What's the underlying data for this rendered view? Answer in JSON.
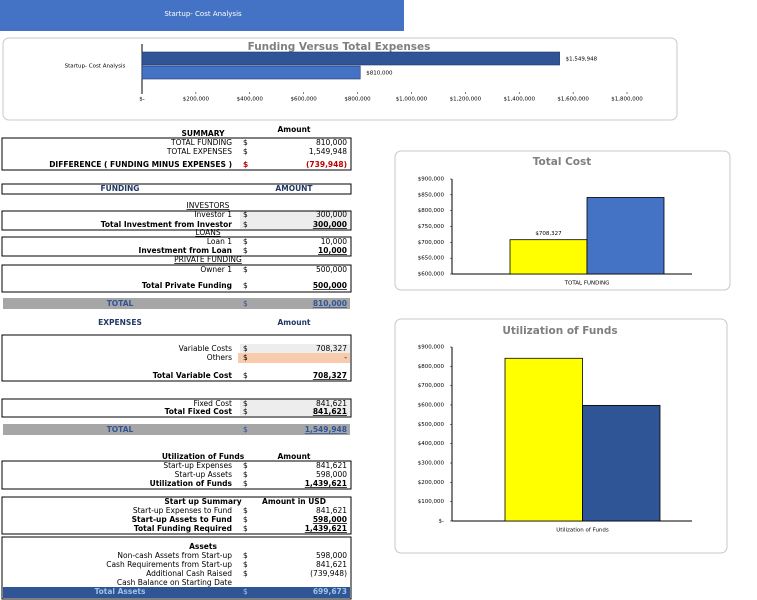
{
  "banner": {
    "title": "Startup- Cost Analysis"
  },
  "chart_data": [
    {
      "type": "bar",
      "orientation": "horizontal",
      "title": "Funding Versus Total Expenses",
      "categories": [
        "Startup- Cost Analysis"
      ],
      "series": [
        {
          "color": "#2f5597",
          "values": [
            1549948
          ],
          "value_labels": [
            "$1,549,948"
          ]
        },
        {
          "color": "#4472c4",
          "values": [
            810000
          ],
          "value_labels": [
            "$810,000"
          ]
        }
      ],
      "xlim": [
        0,
        1800000
      ],
      "xticks": [
        {
          "value": 0,
          "label": "$-"
        },
        {
          "value": 200000,
          "label": "$200,000"
        },
        {
          "value": 400000,
          "label": "$400,000"
        },
        {
          "value": 600000,
          "label": "$600,000"
        },
        {
          "value": 800000,
          "label": "$800,000"
        },
        {
          "value": 1000000,
          "label": "$1,000,000"
        },
        {
          "value": 1200000,
          "label": "$1,200,000"
        },
        {
          "value": 1400000,
          "label": "$1,400,000"
        },
        {
          "value": 1600000,
          "label": "$1,600,000"
        },
        {
          "value": 1800000,
          "label": "$1,800,000"
        }
      ]
    },
    {
      "type": "bar",
      "title": "Total Cost",
      "categories": [
        "TOTAL FUNDING"
      ],
      "series": [
        {
          "color": "#ffff00",
          "values": [
            708327
          ],
          "value_labels": [
            "$708,327"
          ]
        },
        {
          "color": "#4472c4",
          "values": [
            841621
          ]
        }
      ],
      "ylim": [
        600000,
        900000
      ],
      "yticks": [
        {
          "value": 600000,
          "label": "$600,000"
        },
        {
          "value": 650000,
          "label": "$650,000"
        },
        {
          "value": 700000,
          "label": "$700,000"
        },
        {
          "value": 750000,
          "label": "$750,000"
        },
        {
          "value": 800000,
          "label": "$800,000"
        },
        {
          "value": 850000,
          "label": "$850,000"
        },
        {
          "value": 900000,
          "label": "$900,000"
        }
      ]
    },
    {
      "type": "bar",
      "title": "Utilization of Funds",
      "categories": [
        "Utilization of Funds"
      ],
      "series": [
        {
          "color": "#ffff00",
          "values": [
            841621
          ]
        },
        {
          "color": "#2f5597",
          "values": [
            598000
          ]
        }
      ],
      "ylim": [
        0,
        900000
      ],
      "yticks": [
        {
          "value": 0,
          "label": "$-"
        },
        {
          "value": 100000,
          "label": "$100,000"
        },
        {
          "value": 200000,
          "label": "$200,000"
        },
        {
          "value": 300000,
          "label": "$300,000"
        },
        {
          "value": 400000,
          "label": "$400,000"
        },
        {
          "value": 500000,
          "label": "$500,000"
        },
        {
          "value": 600000,
          "label": "$600,000"
        },
        {
          "value": 700000,
          "label": "$700,000"
        },
        {
          "value": 800000,
          "label": "$800,000"
        },
        {
          "value": 900000,
          "label": "$900,000"
        }
      ]
    }
  ],
  "sheet": {
    "rows": [
      {
        "amount": "Amount"
      },
      {
        "label": "SUMMARY"
      },
      {
        "label": "TOTAL FUNDING",
        "cur": "$",
        "amount": "810,000"
      },
      {
        "label": "TOTAL EXPENSES",
        "cur": "$",
        "amount": "1,549,948"
      },
      {
        "label": "DIFFERENCE ( FUNDING MINUS EXPENSES )",
        "cur": "$",
        "amount": "(739,948)"
      },
      {
        "label": "FUNDING",
        "amount": "AMOUNT"
      },
      {
        "label": "INVESTORS"
      },
      {
        "label": "Investor 1",
        "cur": "$",
        "amount": "300,000"
      },
      {
        "label": "Total Investment from Investor",
        "cur": "$",
        "amount": "300,000"
      },
      {
        "label": "LOANS"
      },
      {
        "label": "Loan 1",
        "cur": "$",
        "amount": "10,000"
      },
      {
        "label": "Investment from Loan",
        "cur": "$",
        "amount": "10,000"
      },
      {
        "label": "PRIVATE FUNDING"
      },
      {
        "label": "Owner 1",
        "cur": "$",
        "amount": "500,000"
      },
      {
        "label": "Total Private Funding",
        "cur": "$",
        "amount": "500,000"
      },
      {
        "label": "TOTAL",
        "cur": "$",
        "amount": "810,000"
      },
      {
        "label": "EXPENSES",
        "amount": "Amount"
      },
      {
        "label": "Variable Costs",
        "cur": "$",
        "amount": "708,327"
      },
      {
        "label": "Others",
        "cur": "$",
        "amount": "-"
      },
      {
        "label": "Total Variable Cost",
        "cur": "$",
        "amount": "708,327"
      },
      {
        "label": "Fixed Cost",
        "cur": "$",
        "amount": "841,621"
      },
      {
        "label": "Total Fixed Cost",
        "cur": "$",
        "amount": "841,621"
      },
      {
        "label": "TOTAL",
        "cur": "$",
        "amount": "1,549,948"
      },
      {
        "label": "Utilization of Funds",
        "amount": "Amount"
      },
      {
        "label": "Start-up Expenses",
        "cur": "$",
        "amount": "841,621"
      },
      {
        "label": "Start-up Assets",
        "cur": "$",
        "amount": "598,000"
      },
      {
        "label": "Utilization of Funds",
        "cur": "$",
        "amount": "1,439,621"
      },
      {
        "label": "Start up Summary",
        "amount": "Amount in USD"
      },
      {
        "label": "Start-up Expenses to Fund",
        "cur": "$",
        "amount": "841,621"
      },
      {
        "label": "Start-up Assets to Fund",
        "cur": "$",
        "amount": "598,000"
      },
      {
        "label": "Total Funding Required",
        "cur": "$",
        "amount": "1,439,621"
      },
      {
        "label": "Assets"
      },
      {
        "label": "Non-cash Assets from Start-up",
        "cur": "$",
        "amount": "598,000"
      },
      {
        "label": "Cash Requirements from Start-up",
        "cur": "$",
        "amount": "841,621"
      },
      {
        "label": "Additional Cash Raised",
        "cur": "$",
        "amount": "(739,948)"
      },
      {
        "label": "Cash Balance on Starting Date"
      },
      {
        "label": "Total Assets",
        "cur": "$",
        "amount": "699,673"
      }
    ]
  }
}
